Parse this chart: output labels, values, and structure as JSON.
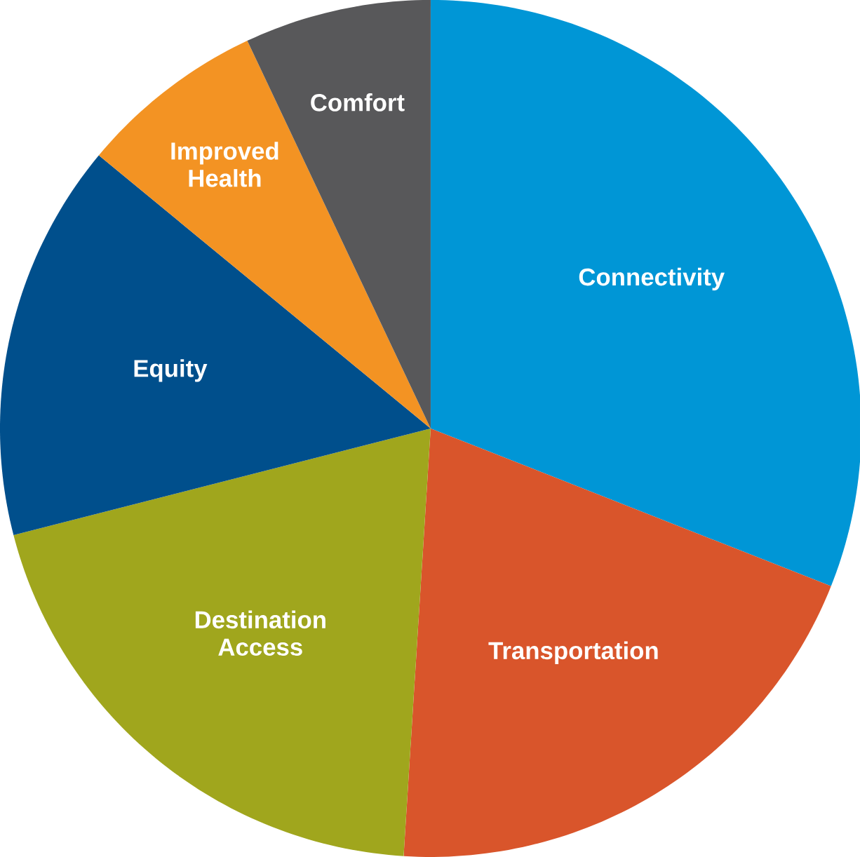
{
  "chart_data": {
    "type": "pie",
    "categories": [
      "Connectivity",
      "Transportation",
      "Destination Access",
      "Equity",
      "Improved Health",
      "Comfort"
    ],
    "values": [
      31,
      20,
      20,
      15,
      7,
      7
    ],
    "colors": [
      "#0096d6",
      "#d9552b",
      "#a0a61d",
      "#004f8c",
      "#f39323",
      "#58585a"
    ]
  }
}
